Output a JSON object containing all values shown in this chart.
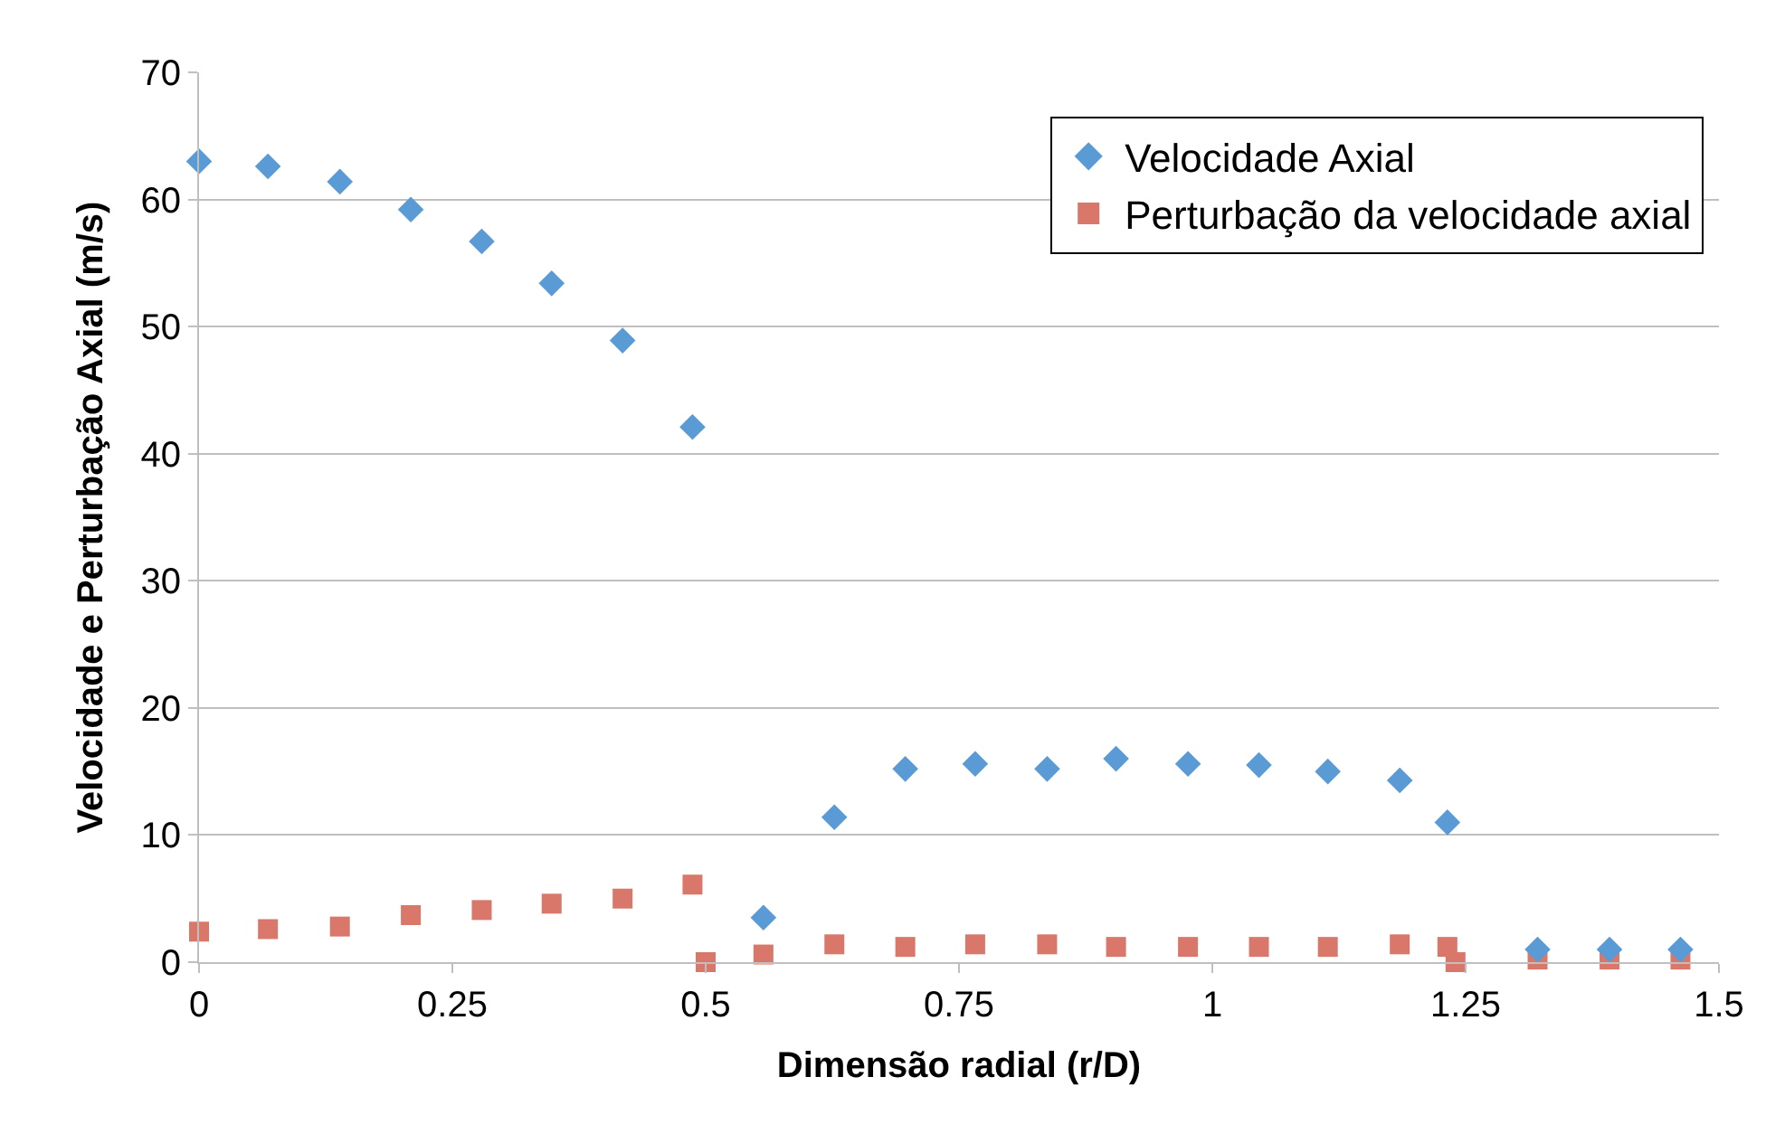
{
  "chart_data": {
    "type": "scatter",
    "xlabel": "Dimensão radial (r/D)",
    "ylabel": "Velocidade e Perturbação Axial (m/s)",
    "xlim": [
      0,
      1.5
    ],
    "xticks": [
      0,
      0.25,
      0.5,
      0.75,
      1,
      1.25,
      1.5
    ],
    "ylim": [
      0,
      70
    ],
    "yticks": [
      0,
      10,
      20,
      30,
      40,
      50,
      60,
      70
    ],
    "grid": "y",
    "legend": "top right",
    "series": [
      {
        "name": "Velocidade Axial",
        "color": "#5b9bd5",
        "marker": "diamond",
        "x": [
          0,
          0.068,
          0.139,
          0.209,
          0.279,
          0.348,
          0.418,
          0.487,
          0.557,
          0.627,
          0.697,
          0.766,
          0.837,
          0.905,
          0.976,
          1.046,
          1.114,
          1.185,
          1.232,
          1.321,
          1.392,
          1.462
        ],
        "values": [
          63,
          62.6,
          61.4,
          59.2,
          56.7,
          53.4,
          48.9,
          42.1,
          3.5,
          11.4,
          15.2,
          15.6,
          15.2,
          16,
          15.6,
          15.5,
          15,
          14.3,
          11,
          1,
          1,
          1
        ]
      },
      {
        "name": "Perturbação da velocidade axial",
        "color": "#d9776a",
        "marker": "square",
        "x": [
          0,
          0.068,
          0.139,
          0.209,
          0.279,
          0.348,
          0.418,
          0.487,
          0.5,
          0.557,
          0.627,
          0.697,
          0.766,
          0.837,
          0.905,
          0.976,
          1.046,
          1.114,
          1.185,
          1.232,
          1.24,
          1.321,
          1.392,
          1.462
        ],
        "values": [
          2.4,
          2.6,
          2.8,
          3.7,
          4.1,
          4.6,
          5,
          6.1,
          0,
          0.6,
          1.4,
          1.2,
          1.4,
          1.4,
          1.2,
          1.2,
          1.2,
          1.2,
          1.4,
          1.2,
          0,
          0.2,
          0.2,
          0.2
        ]
      }
    ]
  }
}
